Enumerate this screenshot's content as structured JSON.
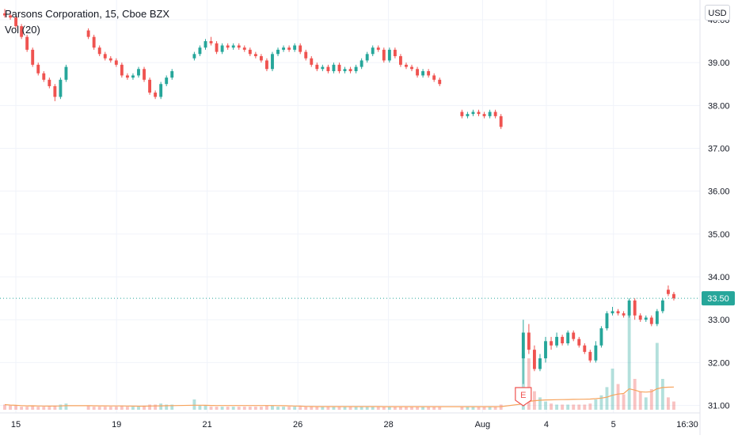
{
  "header": {
    "title": "Parsons Corporation, 15, Cboe BZX",
    "indicator": "Vol (20)",
    "currency_button": "USD"
  },
  "colors": {
    "up": "#26a69a",
    "down": "#ef5350",
    "grid": "#f0f3fa",
    "axis_text": "#131722",
    "ma_line": "#f7a35c",
    "last_price_bg": "#26a69a",
    "earnings": "#ef5350"
  },
  "chart_data": {
    "type": "candlestick",
    "title": "Parsons Corporation, 15, Cboe BZX",
    "interval": "15",
    "currency": "USD",
    "ylim": [
      30.9,
      40.35
    ],
    "y_ticks": [
      "40.00",
      "39.00",
      "38.00",
      "37.00",
      "36.00",
      "35.00",
      "34.00",
      "33.00",
      "32.00",
      "31.00"
    ],
    "y_tick_values": [
      40,
      39,
      38,
      37,
      36,
      35,
      34,
      33,
      32,
      31
    ],
    "x_ticks": [
      {
        "label": "15",
        "pos": 0.0
      },
      {
        "label": "19",
        "pos": 0.15
      },
      {
        "label": "21",
        "pos": 0.285
      },
      {
        "label": "26",
        "pos": 0.42
      },
      {
        "label": "28",
        "pos": 0.555
      },
      {
        "label": "Aug",
        "pos": 0.695
      },
      {
        "label": "4",
        "pos": 0.79
      },
      {
        "label": "5",
        "pos": 0.89
      },
      {
        "label": "16:30",
        "pos": 1.0
      }
    ],
    "last_price": "33.50",
    "last_price_value": 33.5,
    "earnings_marker": {
      "label": "E",
      "pos": 0.79
    },
    "candles": [
      [
        40.15,
        40.1,
        40.25,
        40.05
      ],
      [
        40.1,
        40.05,
        40.2,
        40.0
      ],
      [
        40.05,
        39.85,
        40.1,
        39.8
      ],
      [
        39.85,
        39.6,
        39.9,
        39.55
      ],
      [
        39.6,
        39.3,
        39.65,
        39.25
      ],
      [
        39.3,
        38.95,
        39.35,
        38.9
      ],
      [
        38.95,
        38.75,
        39.0,
        38.7
      ],
      [
        38.75,
        38.6,
        38.8,
        38.55
      ],
      [
        38.6,
        38.45,
        38.65,
        38.4
      ],
      [
        38.45,
        38.2,
        38.5,
        38.1
      ],
      [
        38.2,
        38.6,
        38.65,
        38.15
      ],
      [
        38.6,
        38.9,
        38.95,
        38.55
      ],
      [
        39.75,
        39.6,
        39.8,
        39.55
      ],
      [
        39.6,
        39.35,
        39.65,
        39.3
      ],
      [
        39.35,
        39.2,
        39.4,
        39.15
      ],
      [
        39.2,
        39.1,
        39.25,
        39.05
      ],
      [
        39.1,
        39.05,
        39.15,
        39.0
      ],
      [
        39.05,
        38.95,
        39.1,
        38.9
      ],
      [
        38.95,
        38.7,
        39.0,
        38.65
      ],
      [
        38.7,
        38.65,
        38.75,
        38.6
      ],
      [
        38.65,
        38.7,
        38.75,
        38.6
      ],
      [
        38.7,
        38.85,
        38.9,
        38.65
      ],
      [
        38.85,
        38.6,
        38.9,
        38.55
      ],
      [
        38.6,
        38.3,
        38.65,
        38.25
      ],
      [
        38.3,
        38.2,
        38.35,
        38.15
      ],
      [
        38.2,
        38.5,
        38.55,
        38.15
      ],
      [
        38.5,
        38.65,
        38.7,
        38.45
      ],
      [
        38.65,
        38.8,
        38.85,
        38.6
      ],
      [
        39.1,
        39.2,
        39.25,
        39.05
      ],
      [
        39.2,
        39.35,
        39.4,
        39.15
      ],
      [
        39.35,
        39.5,
        39.55,
        39.3
      ],
      [
        39.5,
        39.45,
        39.6,
        39.4
      ],
      [
        39.45,
        39.25,
        39.5,
        39.2
      ],
      [
        39.25,
        39.4,
        39.45,
        39.2
      ],
      [
        39.4,
        39.35,
        39.45,
        39.3
      ],
      [
        39.35,
        39.4,
        39.45,
        39.3
      ],
      [
        39.4,
        39.35,
        39.45,
        39.3
      ],
      [
        39.35,
        39.3,
        39.4,
        39.25
      ],
      [
        39.3,
        39.2,
        39.35,
        39.15
      ],
      [
        39.2,
        39.15,
        39.25,
        39.1
      ],
      [
        39.15,
        39.05,
        39.2,
        39.0
      ],
      [
        39.05,
        38.85,
        39.1,
        38.8
      ],
      [
        38.85,
        39.2,
        39.25,
        38.8
      ],
      [
        39.2,
        39.3,
        39.35,
        39.15
      ],
      [
        39.3,
        39.35,
        39.4,
        39.25
      ],
      [
        39.35,
        39.3,
        39.4,
        39.25
      ],
      [
        39.3,
        39.4,
        39.45,
        39.25
      ],
      [
        39.4,
        39.25,
        39.45,
        39.2
      ],
      [
        39.25,
        39.1,
        39.3,
        39.05
      ],
      [
        39.1,
        38.95,
        39.15,
        38.9
      ],
      [
        38.95,
        38.85,
        39.0,
        38.8
      ],
      [
        38.85,
        38.9,
        38.95,
        38.8
      ],
      [
        38.9,
        38.8,
        38.95,
        38.75
      ],
      [
        38.8,
        38.95,
        39.0,
        38.75
      ],
      [
        38.95,
        38.8,
        39.0,
        38.75
      ],
      [
        38.8,
        38.85,
        38.9,
        38.75
      ],
      [
        38.85,
        38.8,
        38.9,
        38.75
      ],
      [
        38.8,
        38.9,
        38.95,
        38.75
      ],
      [
        38.9,
        39.05,
        39.1,
        38.85
      ],
      [
        39.05,
        39.2,
        39.25,
        39.0
      ],
      [
        39.2,
        39.35,
        39.4,
        39.15
      ],
      [
        39.35,
        39.3,
        39.4,
        39.25
      ],
      [
        39.3,
        39.05,
        39.35,
        39.0
      ],
      [
        39.05,
        39.3,
        39.35,
        39.0
      ],
      [
        39.3,
        39.15,
        39.35,
        39.1
      ],
      [
        39.15,
        38.95,
        39.2,
        38.9
      ],
      [
        38.95,
        38.9,
        39.0,
        38.85
      ],
      [
        38.9,
        38.85,
        38.95,
        38.8
      ],
      [
        38.85,
        38.7,
        38.9,
        38.65
      ],
      [
        38.7,
        38.8,
        38.85,
        38.65
      ],
      [
        38.8,
        38.7,
        38.85,
        38.65
      ],
      [
        38.7,
        38.6,
        38.75,
        38.55
      ],
      [
        38.6,
        38.5,
        38.65,
        38.45
      ],
      [
        37.85,
        37.75,
        37.9,
        37.7
      ],
      [
        37.75,
        37.8,
        37.85,
        37.7
      ],
      [
        37.8,
        37.85,
        37.9,
        37.75
      ],
      [
        37.85,
        37.8,
        37.9,
        37.75
      ],
      [
        37.8,
        37.75,
        37.85,
        37.7
      ],
      [
        37.75,
        37.85,
        37.9,
        37.7
      ],
      [
        37.85,
        37.75,
        37.9,
        37.7
      ],
      [
        37.75,
        37.5,
        37.8,
        37.45
      ],
      [
        32.1,
        32.7,
        33.0,
        31.5
      ],
      [
        32.7,
        32.3,
        32.9,
        32.2
      ],
      [
        32.3,
        31.85,
        32.4,
        31.8
      ],
      [
        31.85,
        32.1,
        32.2,
        31.8
      ],
      [
        32.1,
        32.5,
        32.6,
        32.0
      ],
      [
        32.5,
        32.4,
        32.6,
        32.3
      ],
      [
        32.4,
        32.6,
        32.7,
        32.35
      ],
      [
        32.6,
        32.45,
        32.65,
        32.4
      ],
      [
        32.45,
        32.7,
        32.75,
        32.4
      ],
      [
        32.7,
        32.55,
        32.75,
        32.5
      ],
      [
        32.55,
        32.4,
        32.6,
        32.35
      ],
      [
        32.4,
        32.25,
        32.45,
        32.2
      ],
      [
        32.25,
        32.05,
        32.3,
        32.0
      ],
      [
        32.05,
        32.4,
        32.5,
        32.0
      ],
      [
        32.4,
        32.8,
        32.85,
        32.35
      ],
      [
        32.8,
        33.15,
        33.2,
        32.75
      ],
      [
        33.15,
        33.2,
        33.3,
        33.1
      ],
      [
        33.2,
        33.15,
        33.25,
        33.1
      ],
      [
        33.15,
        33.1,
        33.2,
        33.05
      ],
      [
        33.1,
        33.45,
        33.5,
        33.05
      ],
      [
        33.45,
        33.1,
        33.5,
        33.0
      ],
      [
        33.1,
        33.0,
        33.15,
        32.95
      ],
      [
        33.0,
        33.05,
        33.1,
        32.95
      ],
      [
        33.05,
        32.9,
        33.1,
        32.85
      ],
      [
        32.9,
        33.2,
        33.25,
        32.85
      ],
      [
        33.2,
        33.45,
        33.5,
        33.15
      ],
      [
        33.7,
        33.6,
        33.8,
        33.55
      ],
      [
        33.6,
        33.5,
        33.65,
        33.45
      ]
    ],
    "gap_after_index": [
      11,
      27,
      72,
      80
    ],
    "volumes": [
      0.05,
      0.04,
      0.04,
      0.03,
      0.03,
      0.04,
      0.03,
      0.03,
      0.03,
      0.04,
      0.05,
      0.06,
      0.04,
      0.03,
      0.03,
      0.03,
      0.03,
      0.03,
      0.04,
      0.03,
      0.03,
      0.03,
      0.04,
      0.05,
      0.05,
      0.06,
      0.05,
      0.05,
      0.1,
      0.04,
      0.04,
      0.03,
      0.03,
      0.03,
      0.03,
      0.03,
      0.03,
      0.03,
      0.03,
      0.03,
      0.03,
      0.04,
      0.04,
      0.03,
      0.03,
      0.03,
      0.03,
      0.03,
      0.03,
      0.03,
      0.03,
      0.03,
      0.03,
      0.03,
      0.03,
      0.03,
      0.03,
      0.03,
      0.03,
      0.03,
      0.03,
      0.03,
      0.03,
      0.03,
      0.03,
      0.03,
      0.03,
      0.03,
      0.03,
      0.03,
      0.03,
      0.03,
      0.03,
      0.03,
      0.03,
      0.03,
      0.03,
      0.03,
      0.03,
      0.03,
      0.05,
      0.55,
      0.5,
      0.18,
      0.12,
      0.08,
      0.06,
      0.05,
      0.05,
      0.05,
      0.05,
      0.05,
      0.05,
      0.06,
      0.1,
      0.14,
      0.22,
      0.4,
      0.25,
      0.15,
      0.95,
      0.3,
      0.18,
      0.12,
      0.2,
      0.65,
      0.3,
      0.12,
      0.08
    ]
  }
}
